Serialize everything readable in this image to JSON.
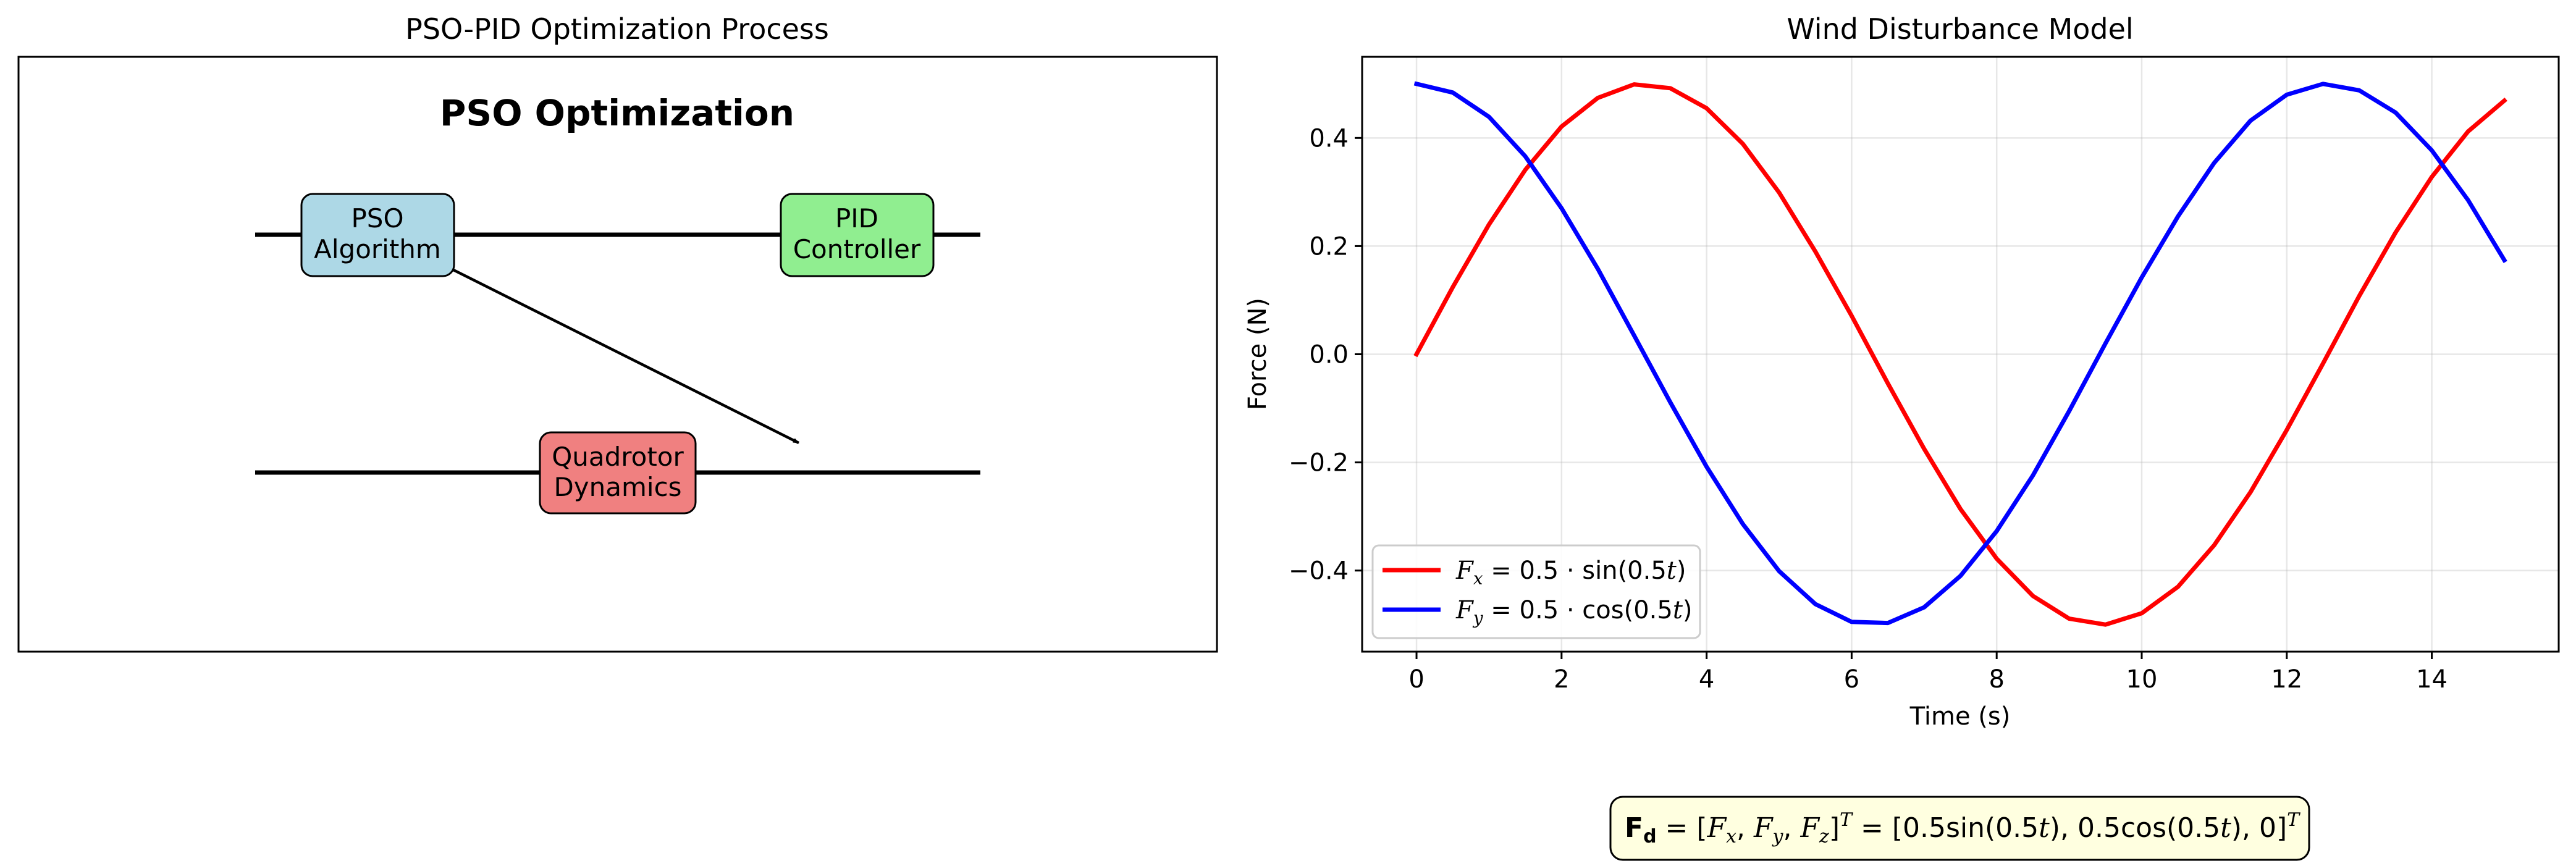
{
  "left_panel": {
    "title": "PSO-PID Optimization Process",
    "heading": "PSO Optimization",
    "boxes": [
      {
        "id": "pso",
        "lines": [
          "PSO",
          "Algorithm"
        ],
        "color": "#add8e6"
      },
      {
        "id": "pid",
        "lines": [
          "PID",
          "Controller"
        ],
        "color": "#90ee90"
      },
      {
        "id": "quad",
        "lines": [
          "Quadrotor",
          "Dynamics"
        ],
        "color": "#f08080"
      }
    ]
  },
  "chart_data": {
    "type": "line",
    "title": "Wind Disturbance Model",
    "xlabel": "Time (s)",
    "ylabel": "Force (N)",
    "xlim": [
      -0.75,
      15.75
    ],
    "ylim": [
      -0.55,
      0.55
    ],
    "xticks": [
      0,
      2,
      4,
      6,
      8,
      10,
      12,
      14
    ],
    "yticks": [
      -0.4,
      -0.2,
      0.0,
      0.2,
      0.4
    ],
    "xtick_labels": [
      "0",
      "2",
      "4",
      "6",
      "8",
      "10",
      "12",
      "14"
    ],
    "ytick_labels": [
      "−0.4",
      "−0.2",
      "0.0",
      "0.2",
      "0.4"
    ],
    "grid": true,
    "legend_position": "lower-left",
    "x": [
      0,
      0.5,
      1,
      1.5,
      2,
      2.5,
      3,
      3.5,
      4,
      4.5,
      5,
      5.5,
      6,
      6.5,
      7,
      7.5,
      8,
      8.5,
      9,
      9.5,
      10,
      10.5,
      11,
      11.5,
      12,
      12.5,
      13,
      13.5,
      14,
      14.5,
      15
    ],
    "series": [
      {
        "name": "F_x = 0.5 · sin(0.5t)",
        "color": "#ff0000",
        "values": [
          0.0,
          0.124,
          0.24,
          0.341,
          0.421,
          0.474,
          0.499,
          0.492,
          0.455,
          0.389,
          0.299,
          0.19,
          0.071,
          -0.054,
          -0.175,
          -0.286,
          -0.378,
          -0.447,
          -0.489,
          -0.5,
          -0.479,
          -0.43,
          -0.353,
          -0.255,
          -0.14,
          -0.017,
          0.108,
          0.225,
          0.328,
          0.412,
          0.469
        ]
      },
      {
        "name": "F_y = 0.5 · cos(0.5t)",
        "color": "#0000ff",
        "values": [
          0.5,
          0.484,
          0.439,
          0.366,
          0.27,
          0.158,
          0.035,
          -0.089,
          -0.208,
          -0.314,
          -0.401,
          -0.462,
          -0.495,
          -0.497,
          -0.468,
          -0.41,
          -0.327,
          -0.224,
          -0.105,
          0.02,
          0.142,
          0.255,
          0.354,
          0.432,
          0.48,
          0.5,
          0.488,
          0.447,
          0.377,
          0.285,
          0.174
        ]
      }
    ]
  },
  "formula": {
    "lhs_symbol": "F",
    "lhs_subscript": "d",
    "text": "= [Fx, Fy, Fz]ᵀ = [0.5sin(0.5t), 0.5cos(0.5t), 0]ᵀ"
  }
}
